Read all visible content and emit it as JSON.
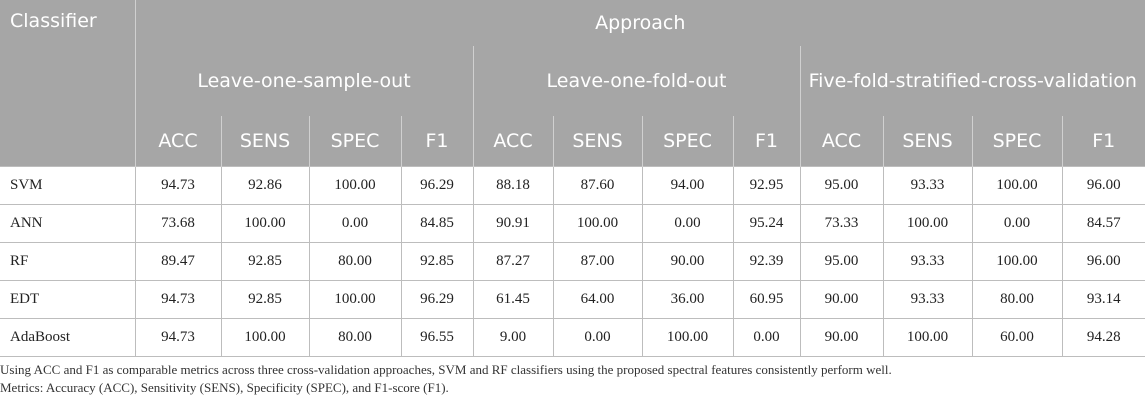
{
  "header": {
    "classifier": "Classifier",
    "approach": "Approach",
    "groups": [
      "Leave-one-sample-out",
      "Leave-one-fold-out",
      "Five-fold-stratified-cross-validation"
    ],
    "metrics": [
      "ACC",
      "SENS",
      "SPEC",
      "F1",
      "ACC",
      "SENS",
      "SPEC",
      "F1",
      "ACC",
      "SENS",
      "SPEC",
      "F1"
    ]
  },
  "rows": [
    {
      "name": "SVM",
      "values": [
        "94.73",
        "92.86",
        "100.00",
        "96.29",
        "88.18",
        "87.60",
        "94.00",
        "92.95",
        "95.00",
        "93.33",
        "100.00",
        "96.00"
      ]
    },
    {
      "name": "ANN",
      "values": [
        "73.68",
        "100.00",
        "0.00",
        "84.85",
        "90.91",
        "100.00",
        "0.00",
        "95.24",
        "73.33",
        "100.00",
        "0.00",
        "84.57"
      ]
    },
    {
      "name": "RF",
      "values": [
        "89.47",
        "92.85",
        "80.00",
        "92.85",
        "87.27",
        "87.00",
        "90.00",
        "92.39",
        "95.00",
        "93.33",
        "100.00",
        "96.00"
      ]
    },
    {
      "name": "EDT",
      "values": [
        "94.73",
        "92.85",
        "100.00",
        "96.29",
        "61.45",
        "64.00",
        "36.00",
        "60.95",
        "90.00",
        "93.33",
        "80.00",
        "93.14"
      ]
    },
    {
      "name": "AdaBoost",
      "values": [
        "94.73",
        "100.00",
        "80.00",
        "96.55",
        "9.00",
        "0.00",
        "100.00",
        "0.00",
        "90.00",
        "100.00",
        "60.00",
        "94.28"
      ]
    }
  ],
  "footnotes": [
    "Using ACC and F1 as comparable metrics across three cross-validation approaches, SVM and RF classifiers using the proposed spectral features consistently perform well.",
    "Metrics: Accuracy (ACC), Sensitivity (SENS), Specificity (SPEC), and F1-score (F1)."
  ]
}
